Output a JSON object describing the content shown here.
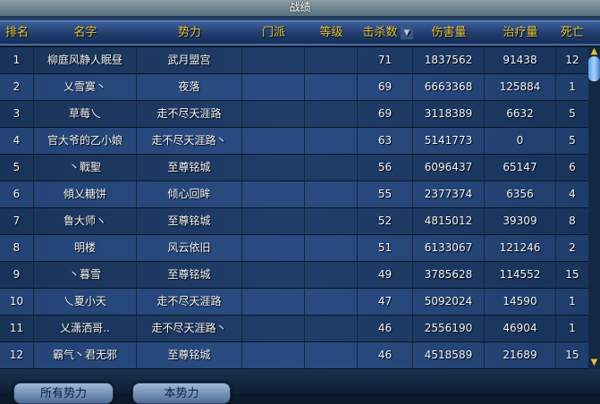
{
  "window": {
    "title": "战绩"
  },
  "columns": [
    "排名",
    "名字",
    "势力",
    "门派",
    "等级",
    "击杀数",
    "伤害量",
    "治疗量",
    "死亡"
  ],
  "sort_icon": "triangle-down-icon",
  "rows": [
    [
      "1",
      "柳庭风静人眠昼",
      "武月盟宫",
      "",
      "",
      "71",
      "1837562",
      "91438",
      "12"
    ],
    [
      "2",
      "乂雪寞丶",
      "夜落",
      "",
      "",
      "69",
      "6663368",
      "125884",
      "1"
    ],
    [
      "3",
      "草莓乀",
      "走不尽天涯路",
      "",
      "",
      "69",
      "3118389",
      "6632",
      "5"
    ],
    [
      "4",
      "官大爷的乙小娘",
      "走不尽天涯路丶",
      "",
      "",
      "63",
      "5141773",
      "0",
      "5"
    ],
    [
      "5",
      "丶戰聖",
      "至尊铭城",
      "",
      "",
      "56",
      "6096437",
      "65147",
      "6"
    ],
    [
      "6",
      "傾乂糖饼",
      "倾心回眸",
      "",
      "",
      "55",
      "2377374",
      "6356",
      "4"
    ],
    [
      "7",
      "鲁大师ヽ",
      "至尊铭城",
      "",
      "",
      "52",
      "4815012",
      "39309",
      "8"
    ],
    [
      "8",
      "明楼",
      "风云依旧",
      "",
      "",
      "51",
      "6133067",
      "121246",
      "2"
    ],
    [
      "9",
      "丶暮雪",
      "至尊铭城",
      "",
      "",
      "49",
      "3785628",
      "114552",
      "15"
    ],
    [
      "10",
      "乀夏小天",
      "走不尽天涯路",
      "",
      "",
      "47",
      "5092024",
      "14590",
      "1"
    ],
    [
      "11",
      "乂潇洒哥..",
      "走不尽天涯路丶",
      "",
      "",
      "46",
      "2556190",
      "46904",
      "1"
    ],
    [
      "12",
      "霸气丶君无邪",
      "至尊铭城",
      "",
      "",
      "46",
      "4518589",
      "21689",
      "15"
    ]
  ],
  "buttons": {
    "all": "所有势力",
    "own": "本势力"
  }
}
